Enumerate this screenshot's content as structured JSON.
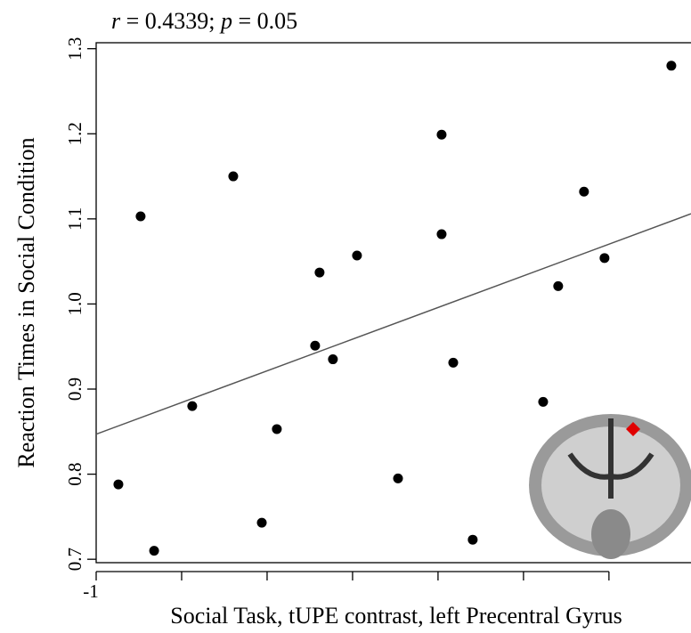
{
  "chart_data": {
    "type": "scatter",
    "annotation_parts": [
      "r",
      " = 0.4339; ",
      "p",
      " = 0.05"
    ],
    "x_label": "Social Task, tUPE contrast, left Precentral Gyrus",
    "y_label": "Reaction Times in Social Condition",
    "x": [
      -0.87,
      -0.74,
      -0.661,
      -0.438,
      -0.198,
      -0.031,
      0.057,
      0.281,
      0.307,
      0.385,
      0.526,
      0.766,
      1.021,
      1.021,
      1.089,
      1.203,
      1.615,
      1.703,
      1.854,
      1.974,
      2.365
    ],
    "values": [
      0.788,
      1.103,
      0.71,
      0.88,
      1.15,
      0.743,
      0.853,
      0.951,
      1.037,
      0.935,
      1.057,
      0.795,
      1.199,
      1.082,
      0.931,
      0.723,
      0.885,
      1.021,
      1.132,
      1.054,
      1.28
    ],
    "color": "#000000",
    "fit_line": {
      "x": [
        -1,
        2.48
      ],
      "y": [
        0.847,
        1.106
      ],
      "color": "#555555"
    },
    "xlim": [
      -1,
      2.48
    ],
    "ylim": [
      0.696,
      1.307
    ],
    "xticks": [
      -1,
      {
        "value": -0.5,
        "label": null
      },
      {
        "value": 0,
        "label": null
      },
      {
        "value": 0.5,
        "label": null
      },
      {
        "value": 1,
        "label": null
      },
      {
        "value": 1.5,
        "label": null
      },
      {
        "value": 2,
        "label": null
      }
    ],
    "yticks": [
      0.7,
      0.8,
      0.9,
      {
        "value": 1,
        "label": "1.0"
      },
      1.1,
      1.2,
      1.3
    ]
  }
}
